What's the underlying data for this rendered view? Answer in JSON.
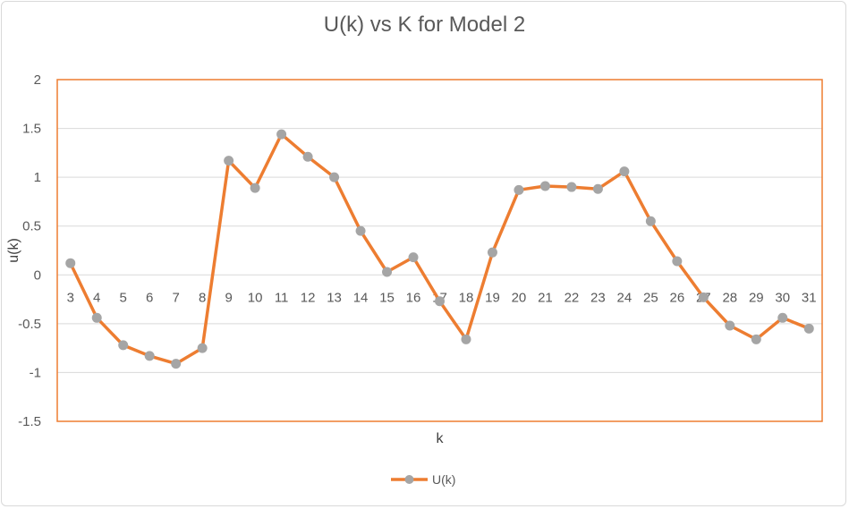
{
  "chart_data": {
    "type": "line",
    "title": "U(k) vs K for Model 2",
    "xlabel": "k",
    "ylabel": "u(k)",
    "ylim": [
      -1.5,
      2
    ],
    "yticks": [
      2,
      1.5,
      1,
      0.5,
      0,
      -0.5,
      -1,
      -1.5
    ],
    "ytick_labels": [
      "2",
      "1.5",
      "1",
      "0.5",
      "0",
      "-0.5",
      "-1",
      "-1.5"
    ],
    "x": [
      "3",
      "4",
      "5",
      "6",
      "7",
      "8",
      "9",
      "10",
      "11",
      "12",
      "13",
      "14",
      "15",
      "16",
      "17",
      "18",
      "19",
      "20",
      "21",
      "22",
      "23",
      "24",
      "25",
      "26",
      "27",
      "28",
      "29",
      "30",
      "31"
    ],
    "series": [
      {
        "name": "U(k)",
        "line_color": "#ed7d31",
        "marker_color": "#a5a5a5",
        "values": [
          0.12,
          -0.44,
          -0.72,
          -0.83,
          -0.91,
          -0.75,
          1.17,
          0.89,
          1.44,
          1.21,
          1.0,
          0.45,
          0.03,
          0.18,
          -0.27,
          -0.66,
          0.23,
          0.87,
          0.91,
          0.9,
          0.88,
          1.06,
          0.55,
          0.14,
          -0.23,
          -0.52,
          -0.66,
          -0.44,
          -0.55
        ]
      }
    ],
    "grid": true,
    "plot_border_color": "#ed7d31",
    "legend_position": "bottom"
  }
}
